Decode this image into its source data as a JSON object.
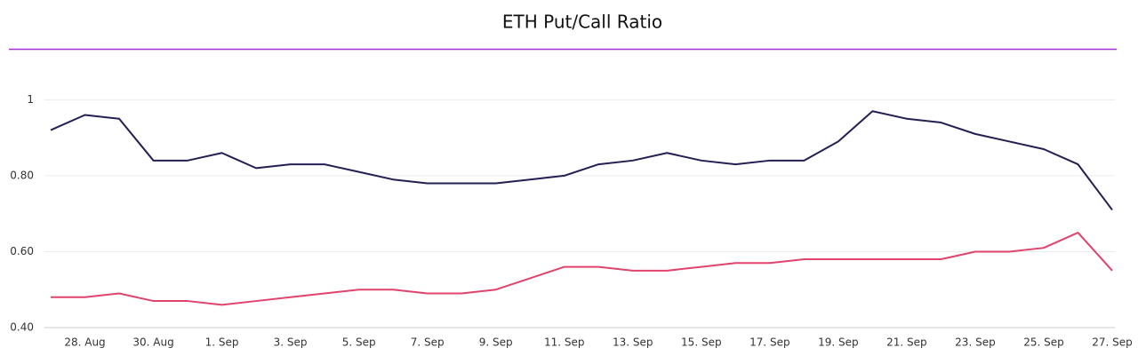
{
  "chart_data": {
    "type": "line",
    "title": "ETH Put/Call Ratio",
    "categories": [
      null,
      "28. Aug",
      null,
      "30. Aug",
      null,
      "1. Sep",
      null,
      "3. Sep",
      null,
      "5. Sep",
      null,
      "7. Sep",
      null,
      "9. Sep",
      null,
      "11. Sep",
      null,
      "13. Sep",
      null,
      "15. Sep",
      null,
      "17. Sep",
      null,
      "19. Sep",
      null,
      "21. Sep",
      null,
      "23. Sep",
      null,
      "25. Sep",
      null,
      "27. Sep"
    ],
    "series": [
      {
        "color": "#231f52",
        "values": [
          0.92,
          0.96,
          0.95,
          0.84,
          0.84,
          0.86,
          0.82,
          0.83,
          0.83,
          0.81,
          0.79,
          0.78,
          0.78,
          0.78,
          0.79,
          0.8,
          0.83,
          0.84,
          0.86,
          0.84,
          0.83,
          0.84,
          0.84,
          0.89,
          0.97,
          0.95,
          0.94,
          0.91,
          0.89,
          0.87,
          0.83,
          0.71
        ]
      },
      {
        "color": "#e0436c",
        "values": [
          0.48,
          0.48,
          0.49,
          0.47,
          0.47,
          0.46,
          0.47,
          0.48,
          0.49,
          0.5,
          0.5,
          0.49,
          0.49,
          0.5,
          0.53,
          0.56,
          0.56,
          0.55,
          0.55,
          0.56,
          0.57,
          0.57,
          0.58,
          0.58,
          0.58,
          0.58,
          0.58,
          0.6,
          0.6,
          0.61,
          0.65,
          0.55
        ]
      }
    ],
    "ylim": [
      0.4,
      1.05
    ],
    "yticks": [
      {
        "value": 0.4,
        "label": "0.40"
      },
      {
        "value": 0.6,
        "label": "0.60"
      },
      {
        "value": 0.8,
        "label": "0.80"
      },
      1
    ],
    "grid": true
  }
}
